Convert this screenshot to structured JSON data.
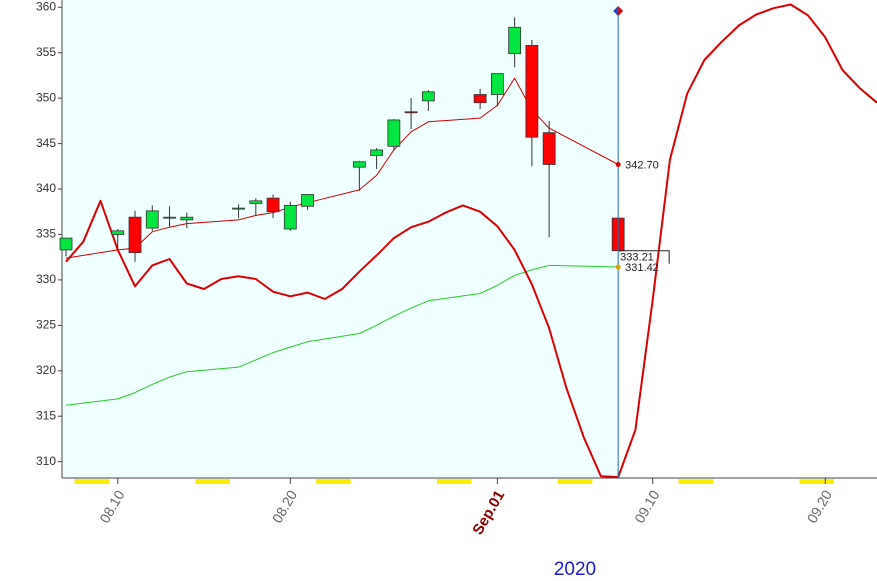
{
  "chart_data": {
    "type": "candlestick",
    "year": "2020",
    "ylim": [
      308.2,
      360.8
    ],
    "yticks": [
      310,
      315,
      320,
      325,
      330,
      335,
      340,
      345,
      350,
      355,
      360
    ],
    "xlim": [
      "08.07",
      "09.23"
    ],
    "xticks": [
      "08.10",
      "08.20",
      {
        "value": "09.01",
        "label": "Sep.01"
      },
      "09.10",
      "09.20"
    ],
    "candles": {
      "x": [
        "08.07",
        "08.10",
        "08.11",
        "08.12",
        "08.13",
        "08.14",
        "08.17",
        "08.18",
        "08.19",
        "08.20",
        "08.21",
        "08.24",
        "08.25",
        "08.26",
        "08.27",
        "08.28",
        "08.31",
        "09.01",
        "09.02",
        "09.03",
        "09.04",
        "09.08"
      ],
      "open": [
        333.3,
        335.0,
        336.9,
        335.7,
        336.8,
        336.6,
        337.8,
        338.4,
        339.0,
        335.6,
        338.1,
        342.4,
        343.7,
        344.7,
        348.5,
        349.7,
        350.4,
        350.4,
        354.9,
        355.8,
        346.2,
        336.8
      ],
      "high": [
        334.6,
        335.6,
        337.6,
        338.2,
        338.1,
        337.4,
        338.3,
        339.0,
        339.4,
        338.6,
        339.4,
        343.1,
        344.5,
        347.7,
        350.0,
        350.9,
        351.0,
        352.7,
        358.9,
        356.4,
        347.5,
        336.8
      ],
      "low": [
        332.6,
        333.5,
        332.0,
        335.4,
        335.8,
        335.7,
        336.8,
        337.0,
        336.8,
        335.4,
        337.7,
        339.8,
        342.2,
        344.3,
        346.6,
        348.6,
        348.8,
        349.1,
        353.4,
        342.5,
        334.7,
        333.21
      ],
      "close": [
        334.6,
        335.4,
        333.0,
        337.6,
        336.9,
        336.9,
        337.9,
        338.7,
        337.5,
        338.2,
        339.4,
        343.0,
        344.3,
        347.6,
        348.4,
        350.7,
        349.5,
        352.7,
        357.8,
        345.7,
        342.7,
        333.21
      ],
      "up_color": "#00e640",
      "down_color": "#ff0000",
      "end_label": true
    },
    "lines": [
      {
        "color": "#cc0000",
        "width": 1,
        "end_label": true,
        "values": [
          332.4,
          333.3,
          333.5,
          335.3,
          335.8,
          336.2,
          336.6,
          337.1,
          337.4,
          338.0,
          338.5,
          339.9,
          341.5,
          344.3,
          346.3,
          347.4,
          347.8,
          349.2,
          352.2,
          348.7,
          346.7,
          342.7
        ],
        "value_labels": [
          null,
          null,
          null,
          null,
          null,
          null,
          null,
          null,
          null,
          null,
          null,
          null,
          null,
          null,
          null,
          null,
          null,
          null,
          null,
          null,
          null,
          "342.70"
        ]
      },
      {
        "color": "#22cc22",
        "width": 1,
        "end_label": true,
        "values": [
          316.2,
          316.9,
          317.6,
          318.5,
          319.3,
          319.9,
          320.4,
          321.2,
          322.0,
          322.6,
          323.2,
          324.1,
          325.0,
          326.0,
          326.9,
          327.7,
          328.5,
          329.4,
          330.5,
          331.1,
          331.6,
          331.42
        ]
      },
      {
        "color": "#dd0000",
        "width": 2,
        "x": [
          "08.07",
          "08.08",
          "08.09",
          "08.10",
          "08.11",
          "08.12",
          "08.13",
          "08.14",
          "08.15",
          "08.16",
          "08.17",
          "08.18",
          "08.19",
          "08.20",
          "08.21",
          "08.22",
          "08.23",
          "08.24",
          "08.25",
          "08.26",
          "08.27",
          "08.28",
          "08.29",
          "08.30",
          "08.31",
          "09.01",
          "09.02",
          "09.03",
          "09.04",
          "09.05",
          "09.06",
          "09.07",
          "09.08",
          "09.09",
          "09.10",
          "09.11",
          "09.12",
          "09.13",
          "09.14",
          "09.15",
          "09.16",
          "09.17",
          "09.18",
          "09.19",
          "09.20",
          "09.21",
          "09.22",
          "09.23"
        ],
        "values": [
          332.0,
          334.2,
          338.7,
          333.3,
          329.3,
          331.6,
          332.3,
          329.6,
          329.0,
          330.1,
          330.4,
          330.1,
          328.7,
          328.2,
          328.6,
          327.9,
          329.0,
          330.9,
          332.7,
          334.6,
          335.8,
          336.4,
          337.4,
          338.2,
          337.5,
          335.9,
          333.3,
          329.5,
          324.7,
          318.1,
          312.7,
          308.4,
          308.3,
          313.5,
          327.8,
          343.2,
          350.5,
          354.2,
          356.2,
          358.0,
          359.2,
          359.9,
          360.3,
          359.1,
          356.7,
          353.1,
          351.1,
          349.5
        ]
      }
    ]
  }
}
